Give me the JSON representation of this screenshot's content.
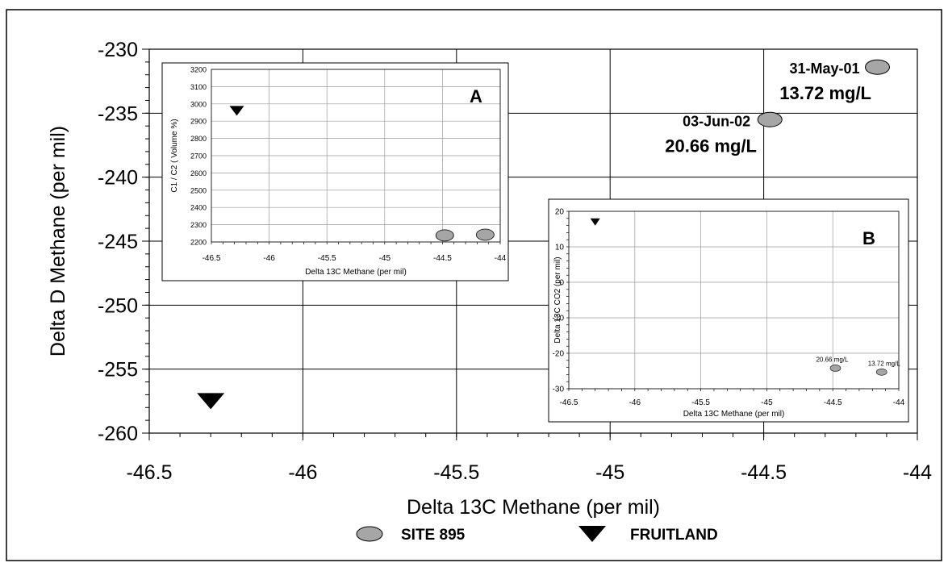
{
  "chart_data": [
    {
      "id": "main",
      "type": "scatter",
      "xlabel": "Delta 13C Methane (per mil)",
      "ylabel": "Delta D Methane (per mil)",
      "xlim": [
        -46.5,
        -44
      ],
      "ylim": [
        -260,
        -230
      ],
      "xticks": [
        -46.5,
        -46,
        -45.5,
        -45,
        -44.5,
        -44
      ],
      "yticks": [
        -230,
        -235,
        -240,
        -245,
        -250,
        -255,
        -260
      ],
      "xtick_labels": [
        "-46.5",
        "-46",
        "-45.5",
        "-45",
        "-44.5",
        "-44"
      ],
      "ytick_labels": [
        "-230",
        "-235",
        "-240",
        "-245",
        "-250",
        "-255",
        "-260"
      ],
      "grid": true,
      "series": [
        {
          "name": "SITE 895",
          "marker": "ellipse",
          "color": "#a6a6a6",
          "points": [
            {
              "x": -44.13,
              "y": -231.4,
              "date": "31-May-01",
              "conc": "13.72 mg/L"
            },
            {
              "x": -44.48,
              "y": -235.5,
              "date": "03-Jun-02",
              "conc": "20.66 mg/L"
            }
          ]
        },
        {
          "name": "FRUITLAND",
          "marker": "triangle-down",
          "color": "#000000",
          "points": [
            {
              "x": -46.3,
              "y": -257.5
            }
          ]
        }
      ],
      "legend": [
        "SITE 895",
        "FRUITLAND"
      ],
      "legend_position": "bottom"
    },
    {
      "id": "inset-a",
      "type": "scatter",
      "panel_label": "A",
      "xlabel": "Delta 13C Methane (per mil)",
      "ylabel": "C1 / C2 ( Volume %)",
      "xlim": [
        -46.5,
        -44
      ],
      "ylim": [
        2200,
        3200
      ],
      "xtick_labels": [
        "-46.5",
        "-46",
        "-45.5",
        "-45",
        "-44.5",
        "-44"
      ],
      "ytick_labels": [
        "3200",
        "3100",
        "3000",
        "2900",
        "2800",
        "2700",
        "2600",
        "2500",
        "2400",
        "2300",
        "2200"
      ],
      "series": [
        {
          "name": "SITE 895",
          "points": [
            {
              "x": -44.48,
              "y": 2238
            },
            {
              "x": -44.13,
              "y": 2242
            }
          ]
        },
        {
          "name": "FRUITLAND",
          "points": [
            {
              "x": -46.28,
              "y": 2960
            }
          ]
        }
      ]
    },
    {
      "id": "inset-b",
      "type": "scatter",
      "panel_label": "B",
      "xlabel": "Delta 13C Methane (per mil)",
      "ylabel": "Delta 13C CO2 (per mil)",
      "xlim": [
        -46.5,
        -44
      ],
      "ylim": [
        -30,
        20
      ],
      "xtick_labels": [
        "-46.5",
        "-46",
        "-45.5",
        "-45",
        "-44.5",
        "-44"
      ],
      "ytick_labels": [
        "20",
        "10",
        "0",
        "-10",
        "-20",
        "-30"
      ],
      "series": [
        {
          "name": "SITE 895",
          "points": [
            {
              "x": -44.48,
              "y": -24.2,
              "label": "20.66 mg/L"
            },
            {
              "x": -44.13,
              "y": -25.3,
              "label": "13.72 mg/L"
            }
          ]
        },
        {
          "name": "FRUITLAND",
          "points": [
            {
              "x": -46.3,
              "y": 17
            }
          ]
        }
      ]
    }
  ]
}
